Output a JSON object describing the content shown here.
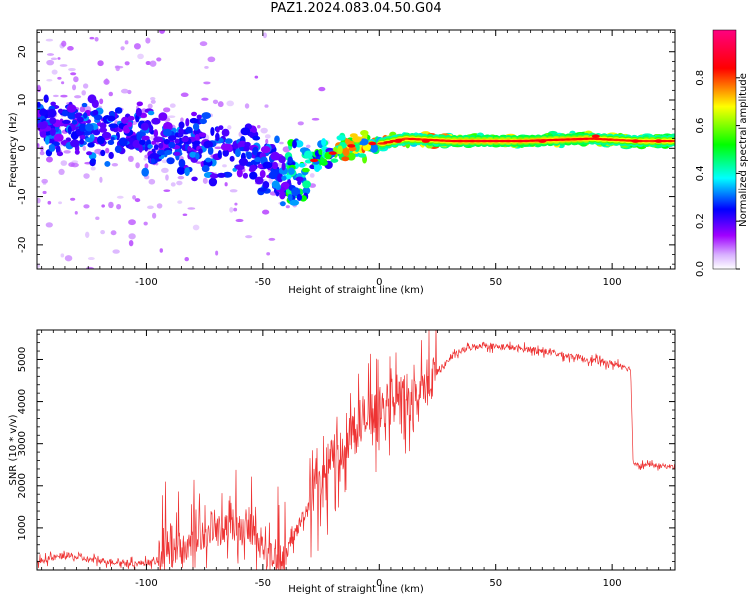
{
  "title": "PAZ1.2024.083.04.50.G04",
  "chart_data": [
    {
      "type": "heatmap",
      "xlabel": "Height of straight line (km)",
      "ylabel": "Frequency (Hz)",
      "xlim": [
        -147,
        127
      ],
      "ylim": [
        -25,
        24.5
      ],
      "x_ticks": [
        -100,
        -50,
        0,
        50,
        100
      ],
      "y_ticks": [
        -20,
        -10,
        0,
        10,
        20
      ],
      "colorbar": {
        "label": "Normalized spectral amplitude",
        "range": [
          0,
          1
        ],
        "ticks": [
          "0.0",
          "0.2",
          "0.4",
          "0.6",
          "0.8"
        ],
        "colormap": [
          "#ffffff",
          "#a000ff",
          "#0000ff",
          "#00ffff",
          "#00ff00",
          "#ffff00",
          "#ff0000",
          "#ff0080"
        ]
      },
      "ridge": {
        "x": [
          -147,
          -130,
          -110,
          -90,
          -75,
          -60,
          -50,
          -40,
          -32,
          -25,
          -15,
          -5,
          0,
          10,
          30,
          60,
          90,
          110,
          127
        ],
        "y": [
          5,
          4,
          3,
          1,
          0,
          -1,
          -3,
          -5,
          -4,
          -2,
          0,
          1,
          1,
          2,
          1.5,
          1.5,
          2,
          1.5,
          1.5
        ]
      },
      "grid": false
    },
    {
      "type": "line",
      "xlabel": "Height of straight line (km)",
      "ylabel": "SNR (10 * v/v)",
      "xlim": [
        -147,
        127
      ],
      "ylim": [
        0,
        5700
      ],
      "x_ticks": [
        -100,
        -50,
        0,
        50,
        100
      ],
      "y_ticks": [
        1000,
        2000,
        3000,
        4000,
        5000
      ],
      "color": "#ee3333",
      "series": [
        {
          "x": [
            -147,
            -135,
            -125,
            -115,
            -105,
            -95,
            -85,
            -75,
            -65,
            -55,
            -45,
            -40,
            -35,
            -30,
            -25,
            -20,
            -15,
            -10,
            -5,
            0,
            5,
            10,
            15,
            20,
            25,
            30,
            35,
            40,
            45,
            50,
            55,
            60,
            65,
            70,
            75,
            80,
            85,
            90,
            95,
            100,
            105,
            108,
            109,
            112,
            120,
            127
          ],
          "y": [
            200,
            350,
            250,
            200,
            150,
            200,
            500,
            800,
            1000,
            900,
            200,
            400,
            1000,
            1600,
            2000,
            2600,
            3200,
            3400,
            3600,
            3700,
            4000,
            4200,
            4000,
            4400,
            4700,
            5000,
            5200,
            5300,
            5350,
            5300,
            5300,
            5250,
            5250,
            5200,
            5150,
            5100,
            5050,
            5000,
            4950,
            4900,
            4850,
            4750,
            2550,
            2500,
            2480,
            2450
          ]
        }
      ],
      "grid": false
    }
  ]
}
